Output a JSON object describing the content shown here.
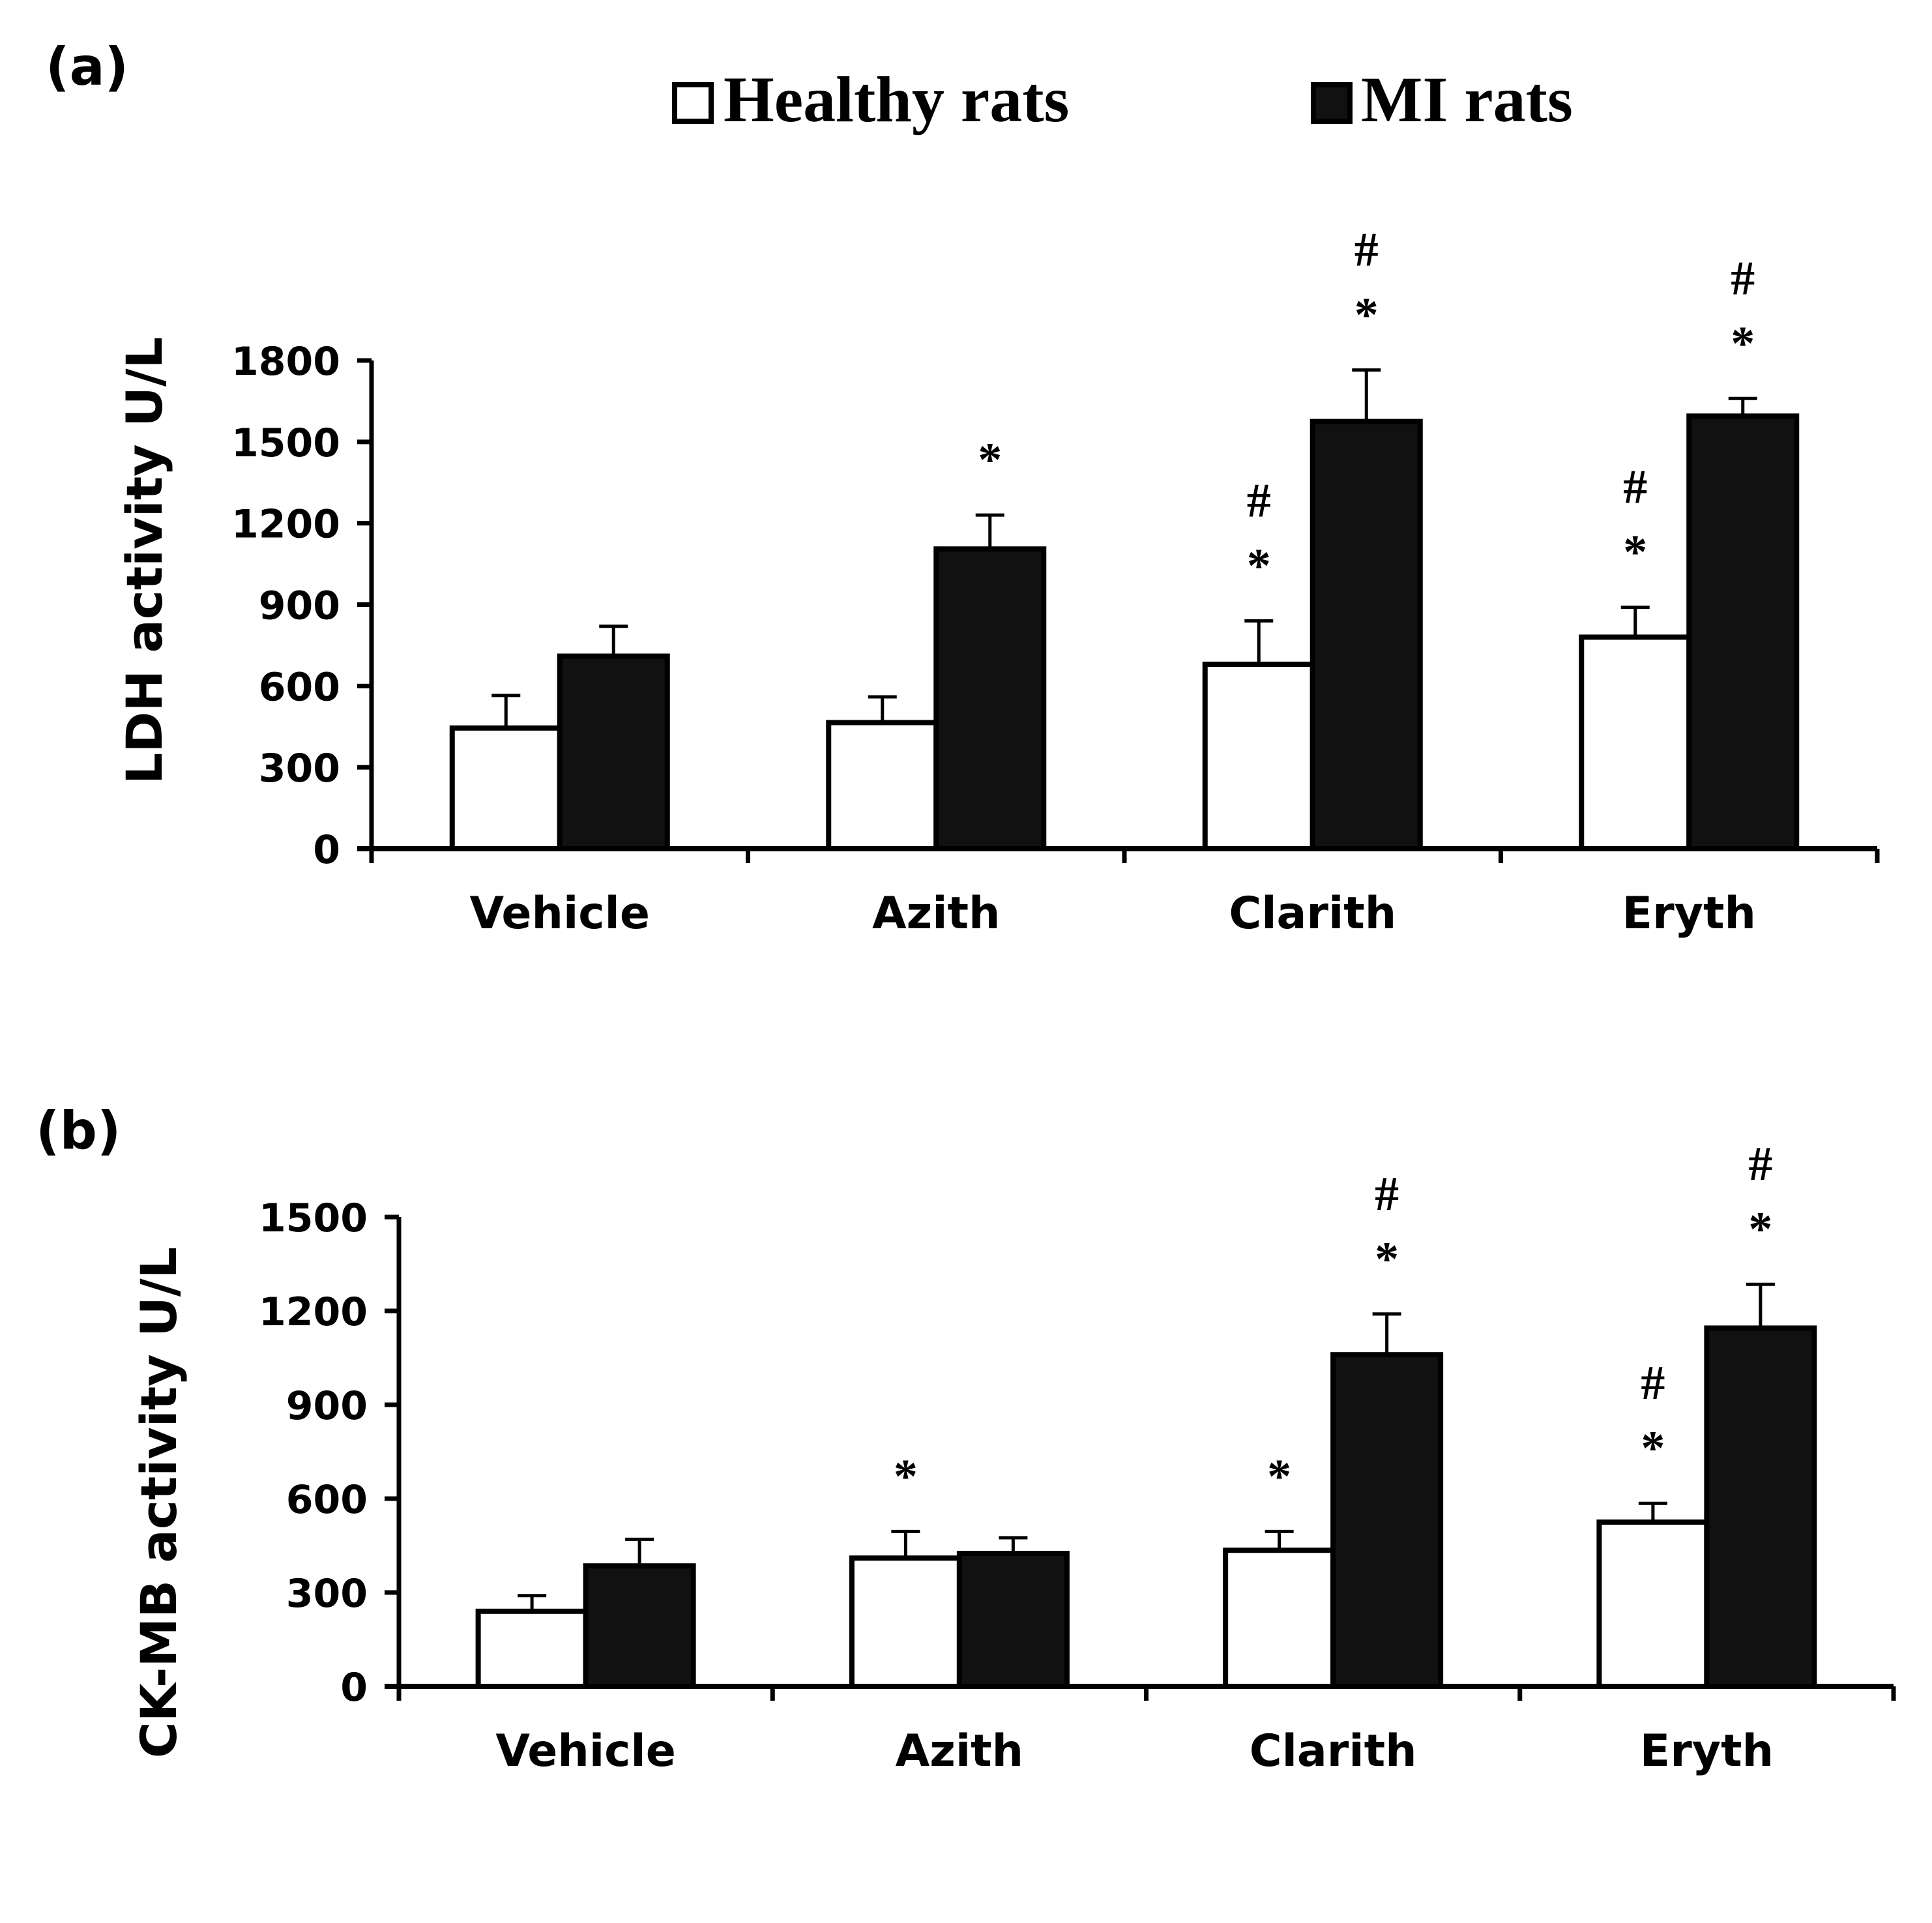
{
  "legend": {
    "healthy_label": "Healthy rats",
    "mi_label": "MI rats"
  },
  "colors": {
    "healthy_fill": "#ffffff",
    "mi_fill": "#111111",
    "stroke": "#000000"
  },
  "chart_data": [
    {
      "type": "bar",
      "panel_label": "(a)",
      "ylabel": "LDH activity  U/L",
      "xlabel": "",
      "categories": [
        "Vehicle",
        "Azith",
        "Clarith",
        "Eryth"
      ],
      "ylim": [
        0,
        1800
      ],
      "yticks": [
        0,
        300,
        600,
        900,
        1200,
        1500,
        1800
      ],
      "series": [
        {
          "name": "Healthy rats",
          "values": [
            445,
            465,
            680,
            780
          ],
          "errors": [
            120,
            95,
            160,
            110
          ],
          "annotations": [
            [
              "",
              ""
            ],
            [
              "",
              ""
            ],
            [
              "*",
              "#"
            ],
            [
              "*",
              "#"
            ]
          ]
        },
        {
          "name": "MI rats",
          "values": [
            710,
            1105,
            1575,
            1595
          ],
          "errors": [
            110,
            125,
            190,
            65
          ],
          "annotations": [
            [
              "",
              ""
            ],
            [
              "*",
              ""
            ],
            [
              "*",
              "#"
            ],
            [
              "*",
              "#"
            ]
          ]
        }
      ]
    },
    {
      "type": "bar",
      "panel_label": "(b)",
      "ylabel": "CK-MB activity  U/L",
      "xlabel": "",
      "categories": [
        "Vehicle",
        "Azith",
        "Clarith",
        "Eryth"
      ],
      "ylim": [
        0,
        1500
      ],
      "yticks": [
        0,
        300,
        600,
        900,
        1200,
        1500
      ],
      "series": [
        {
          "name": "Healthy rats",
          "values": [
            240,
            410,
            435,
            525
          ],
          "errors": [
            50,
            85,
            60,
            60
          ],
          "annotations": [
            [
              "",
              ""
            ],
            [
              "*",
              ""
            ],
            [
              "*",
              ""
            ],
            [
              "*",
              "#"
            ]
          ]
        },
        {
          "name": "MI rats",
          "values": [
            385,
            425,
            1060,
            1145
          ],
          "errors": [
            85,
            50,
            130,
            140
          ],
          "annotations": [
            [
              "",
              ""
            ],
            [
              "",
              ""
            ],
            [
              "*",
              "#"
            ],
            [
              "*",
              "#"
            ]
          ]
        }
      ]
    }
  ]
}
